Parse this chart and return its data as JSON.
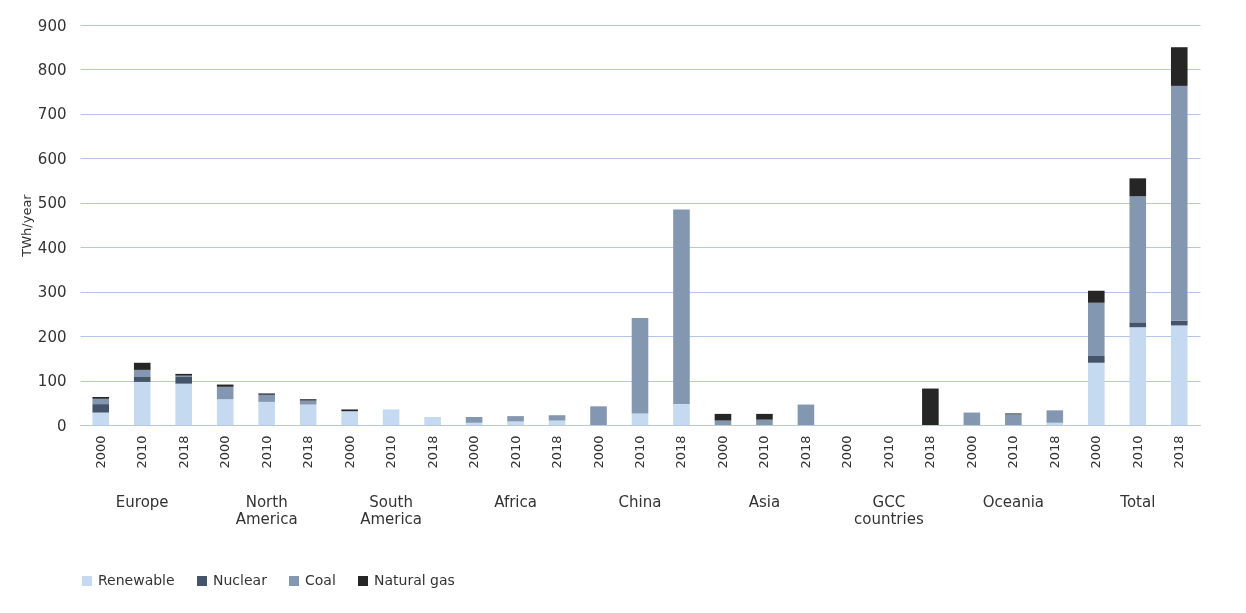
{
  "chart_data": {
    "type": "bar",
    "ylabel": "TWh/year",
    "stacked": true,
    "grid": "y",
    "legend": "bottom",
    "categories": [
      "2000",
      "2010",
      "2018",
      "2000",
      "2010",
      "2018",
      "2000",
      "2010",
      "2018",
      "2000",
      "2010",
      "2018",
      "2000",
      "2010",
      "2018",
      "2000",
      "2010",
      "2018",
      "2000",
      "2010",
      "2018",
      "2000",
      "2010",
      "2018",
      "2000",
      "2010",
      "2018"
    ],
    "annotations": [
      "Europe",
      "North America",
      "South America",
      "Africa",
      "China",
      "Asia",
      "GCC countries",
      "Oceania",
      "Total"
    ],
    "ylim": [
      0,
      900
    ],
    "yticks": [
      0,
      100,
      200,
      300,
      400,
      500,
      600,
      700,
      800,
      900
    ],
    "series": [
      {
        "name": "Renewable",
        "color": "#c5d9f1",
        "values": [
          28,
          97,
          93,
          58,
          52,
          46,
          31,
          35,
          18,
          5,
          8,
          10,
          0,
          26,
          47,
          null,
          null,
          0,
          0,
          0,
          0,
          null,
          0,
          5,
          140,
          220,
          224
        ]
      },
      {
        "name": "Nuclear",
        "color": "#44546a",
        "values": [
          19,
          11,
          15,
          0,
          0,
          0,
          0,
          0,
          0,
          0,
          0,
          0,
          0,
          0,
          0,
          0,
          0,
          0,
          0,
          0,
          0,
          0,
          0,
          0,
          15,
          11,
          11
        ]
      },
      {
        "name": "Coal",
        "color": "#8497b0",
        "values": [
          12,
          16,
          3,
          28,
          16,
          9,
          0,
          0,
          0,
          13,
          12,
          12,
          42,
          215,
          438,
          10,
          12,
          46,
          0,
          0,
          0,
          28,
          24,
          28,
          120,
          284,
          528
        ]
      },
      {
        "name": "Natural gas",
        "color": "#262626",
        "values": [
          4,
          16,
          4,
          5,
          3,
          3,
          4,
          0,
          0,
          0,
          0,
          0,
          0,
          0,
          0,
          15,
          13,
          0,
          0,
          0,
          82,
          0,
          2,
          0,
          27,
          40,
          87
        ]
      }
    ]
  }
}
